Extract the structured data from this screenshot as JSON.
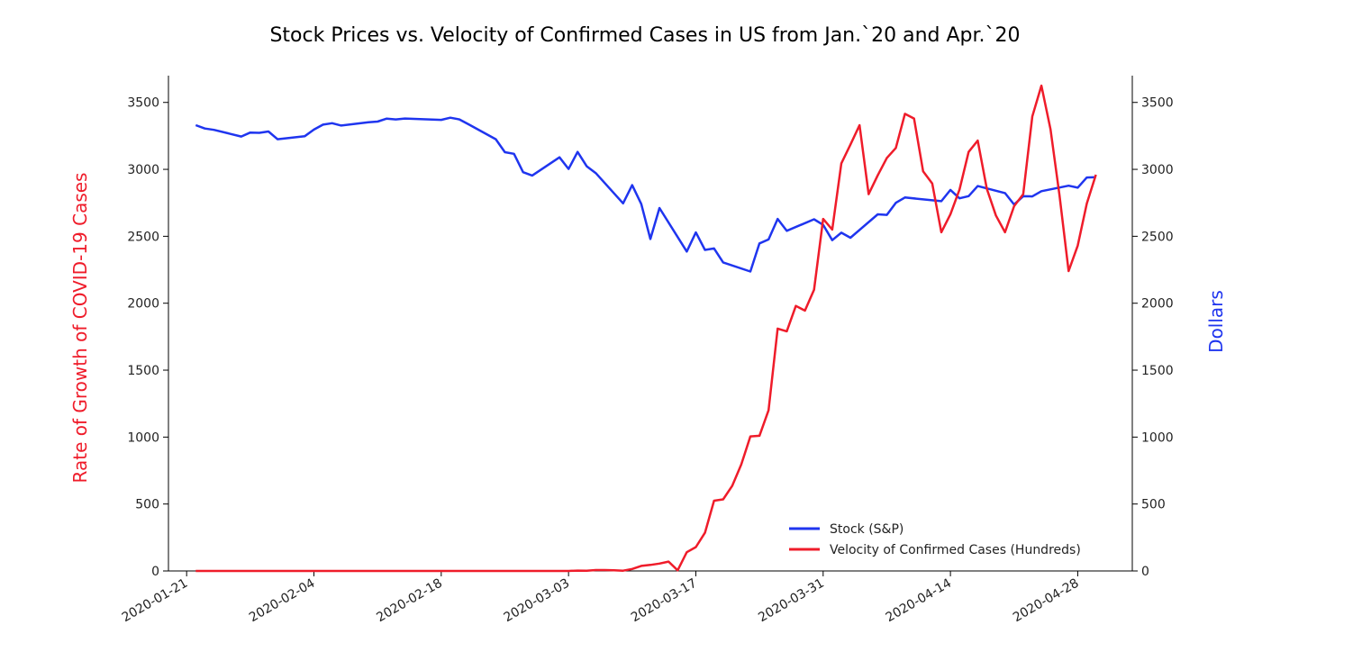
{
  "chart_data": {
    "type": "line",
    "title": "Stock Prices vs. Velocity of Confirmed Cases in US from Jan.`20 and Apr.`20",
    "ylabel_left": "Rate of Growth of COVID-19 Cases",
    "ylabel_right": "Dollars",
    "ylim": [
      0,
      3700
    ],
    "y_ticks": [
      0,
      500,
      1000,
      1500,
      2000,
      2500,
      3000,
      3500
    ],
    "x_range": [
      "2020-01-19",
      "2020-05-04"
    ],
    "x_ticks": [
      "2020-01-21",
      "2020-02-04",
      "2020-02-18",
      "2020-03-03",
      "2020-03-17",
      "2020-03-31",
      "2020-04-14",
      "2020-04-28"
    ],
    "grid": false,
    "legend_position": "lower-right",
    "colors": {
      "stock": "#1f35ef",
      "velocity": "#ef1c2a",
      "left_label": "#ef1c2a",
      "right_label": "#1f35ef"
    },
    "series": [
      {
        "name": "Stock (S&P)",
        "color": "#1f35ef",
        "points": [
          [
            "2020-01-22",
            3330
          ],
          [
            "2020-01-23",
            3305
          ],
          [
            "2020-01-24",
            3295
          ],
          [
            "2020-01-27",
            3245
          ],
          [
            "2020-01-28",
            3275
          ],
          [
            "2020-01-29",
            3273
          ],
          [
            "2020-01-30",
            3283
          ],
          [
            "2020-01-31",
            3225
          ],
          [
            "2020-02-03",
            3248
          ],
          [
            "2020-02-04",
            3297
          ],
          [
            "2020-02-05",
            3334
          ],
          [
            "2020-02-06",
            3345
          ],
          [
            "2020-02-07",
            3327
          ],
          [
            "2020-02-10",
            3352
          ],
          [
            "2020-02-11",
            3357
          ],
          [
            "2020-02-12",
            3379
          ],
          [
            "2020-02-13",
            3373
          ],
          [
            "2020-02-14",
            3380
          ],
          [
            "2020-02-18",
            3370
          ],
          [
            "2020-02-19",
            3386
          ],
          [
            "2020-02-20",
            3373
          ],
          [
            "2020-02-21",
            3337
          ],
          [
            "2020-02-24",
            3225
          ],
          [
            "2020-02-25",
            3128
          ],
          [
            "2020-02-26",
            3116
          ],
          [
            "2020-02-27",
            2979
          ],
          [
            "2020-02-28",
            2954
          ],
          [
            "2020-03-02",
            3090
          ],
          [
            "2020-03-03",
            3003
          ],
          [
            "2020-03-04",
            3130
          ],
          [
            "2020-03-05",
            3023
          ],
          [
            "2020-03-06",
            2972
          ],
          [
            "2020-03-09",
            2746
          ],
          [
            "2020-03-10",
            2882
          ],
          [
            "2020-03-11",
            2741
          ],
          [
            "2020-03-12",
            2480
          ],
          [
            "2020-03-13",
            2711
          ],
          [
            "2020-03-16",
            2386
          ],
          [
            "2020-03-17",
            2529
          ],
          [
            "2020-03-18",
            2398
          ],
          [
            "2020-03-19",
            2409
          ],
          [
            "2020-03-20",
            2305
          ],
          [
            "2020-03-23",
            2237
          ],
          [
            "2020-03-24",
            2447
          ],
          [
            "2020-03-25",
            2476
          ],
          [
            "2020-03-26",
            2630
          ],
          [
            "2020-03-27",
            2541
          ],
          [
            "2020-03-30",
            2627
          ],
          [
            "2020-03-31",
            2585
          ],
          [
            "2020-04-01",
            2471
          ],
          [
            "2020-04-02",
            2527
          ],
          [
            "2020-04-03",
            2489
          ],
          [
            "2020-04-06",
            2664
          ],
          [
            "2020-04-07",
            2660
          ],
          [
            "2020-04-08",
            2750
          ],
          [
            "2020-04-09",
            2790
          ],
          [
            "2020-04-13",
            2762
          ],
          [
            "2020-04-14",
            2846
          ],
          [
            "2020-04-15",
            2784
          ],
          [
            "2020-04-16",
            2800
          ],
          [
            "2020-04-17",
            2875
          ],
          [
            "2020-04-20",
            2823
          ],
          [
            "2020-04-21",
            2737
          ],
          [
            "2020-04-22",
            2799
          ],
          [
            "2020-04-23",
            2798
          ],
          [
            "2020-04-24",
            2837
          ],
          [
            "2020-04-27",
            2878
          ],
          [
            "2020-04-28",
            2863
          ],
          [
            "2020-04-29",
            2939
          ],
          [
            "2020-04-30",
            2941
          ]
        ]
      },
      {
        "name": "Velocity of Confirmed Cases (Hundreds)",
        "color": "#ef1c2a",
        "points": [
          [
            "2020-01-22",
            0
          ],
          [
            "2020-02-01",
            0
          ],
          [
            "2020-02-15",
            0
          ],
          [
            "2020-03-01",
            0
          ],
          [
            "2020-03-03",
            0
          ],
          [
            "2020-03-04",
            3
          ],
          [
            "2020-03-05",
            2
          ],
          [
            "2020-03-06",
            7
          ],
          [
            "2020-03-07",
            7
          ],
          [
            "2020-03-08",
            5
          ],
          [
            "2020-03-09",
            2
          ],
          [
            "2020-03-10",
            15
          ],
          [
            "2020-03-11",
            38
          ],
          [
            "2020-03-12",
            45
          ],
          [
            "2020-03-13",
            55
          ],
          [
            "2020-03-14",
            70
          ],
          [
            "2020-03-15",
            5
          ],
          [
            "2020-03-16",
            140
          ],
          [
            "2020-03-17",
            178
          ],
          [
            "2020-03-18",
            285
          ],
          [
            "2020-03-19",
            525
          ],
          [
            "2020-03-20",
            535
          ],
          [
            "2020-03-21",
            635
          ],
          [
            "2020-03-22",
            795
          ],
          [
            "2020-03-23",
            1005
          ],
          [
            "2020-03-24",
            1010
          ],
          [
            "2020-03-25",
            1200
          ],
          [
            "2020-03-26",
            1810
          ],
          [
            "2020-03-27",
            1790
          ],
          [
            "2020-03-28",
            1980
          ],
          [
            "2020-03-29",
            1945
          ],
          [
            "2020-03-30",
            2100
          ],
          [
            "2020-03-31",
            2630
          ],
          [
            "2020-04-01",
            2550
          ],
          [
            "2020-04-02",
            3045
          ],
          [
            "2020-04-03",
            3185
          ],
          [
            "2020-04-04",
            3330
          ],
          [
            "2020-04-05",
            2815
          ],
          [
            "2020-04-06",
            2955
          ],
          [
            "2020-04-07",
            3085
          ],
          [
            "2020-04-08",
            3160
          ],
          [
            "2020-04-09",
            3415
          ],
          [
            "2020-04-10",
            3380
          ],
          [
            "2020-04-11",
            2985
          ],
          [
            "2020-04-12",
            2895
          ],
          [
            "2020-04-13",
            2530
          ],
          [
            "2020-04-14",
            2665
          ],
          [
            "2020-04-15",
            2850
          ],
          [
            "2020-04-16",
            3130
          ],
          [
            "2020-04-17",
            3215
          ],
          [
            "2020-04-18",
            2855
          ],
          [
            "2020-04-19",
            2655
          ],
          [
            "2020-04-20",
            2530
          ],
          [
            "2020-04-21",
            2725
          ],
          [
            "2020-04-22",
            2815
          ],
          [
            "2020-04-23",
            3395
          ],
          [
            "2020-04-24",
            3625
          ],
          [
            "2020-04-25",
            3300
          ],
          [
            "2020-04-26",
            2805
          ],
          [
            "2020-04-27",
            2240
          ],
          [
            "2020-04-28",
            2430
          ],
          [
            "2020-04-29",
            2745
          ],
          [
            "2020-04-30",
            2960
          ]
        ]
      }
    ]
  }
}
